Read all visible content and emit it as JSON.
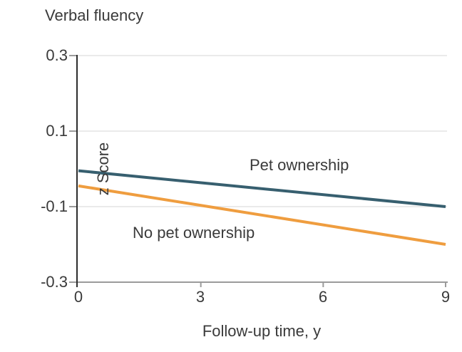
{
  "title": "Verbal fluency",
  "colors": {
    "pet_line": "#375f6f",
    "no_pet_line": "#ef9d3f",
    "grid": "#e4e4e4",
    "axis": "#9b9b9b",
    "spine": "#2d2d2d",
    "text": "#3a3a3a"
  },
  "chart_data": {
    "type": "line",
    "title": "Verbal fluency",
    "xlabel": "Follow-up time, y",
    "ylabel": "z Score",
    "xlim": [
      0,
      9
    ],
    "ylim": [
      -0.3,
      0.3
    ],
    "xticks": [
      "0",
      "3",
      "6",
      "9"
    ],
    "xtick_values": [
      0,
      3,
      6,
      9
    ],
    "yticks": [
      "0.3",
      "0.1",
      "-0.1",
      "-0.3"
    ],
    "ytick_values": [
      0.3,
      0.1,
      -0.1,
      -0.3
    ],
    "grid": "horizontal gridlines at y ticks",
    "legend": "inline labels next to lines",
    "series": [
      {
        "name": "Pet ownership",
        "color": "#375f6f",
        "x": [
          0,
          9
        ],
        "y": [
          -0.005,
          -0.1
        ]
      },
      {
        "name": "No pet ownership",
        "color": "#ef9d3f",
        "x": [
          0,
          9
        ],
        "y": [
          -0.045,
          -0.2
        ]
      }
    ]
  }
}
